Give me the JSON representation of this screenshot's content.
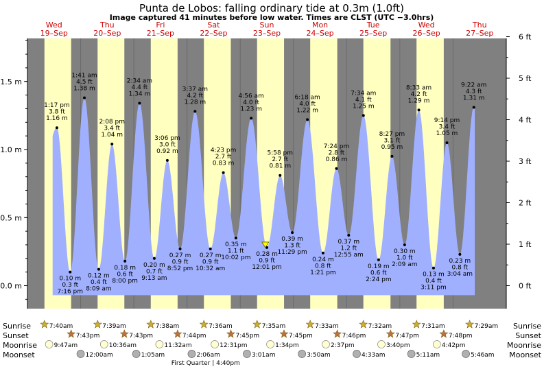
{
  "title": "Punta de Lobos: falling  ordinary tide at 0.3m (1.0ft)",
  "subtitle": "Image captured 41 minutes before low water. Times are CLST (UTC −3.0hrs)",
  "days": [
    {
      "dow": "Wed",
      "date": "19–Sep"
    },
    {
      "dow": "Thu",
      "date": "20–Sep"
    },
    {
      "dow": "Fri",
      "date": "21–Sep"
    },
    {
      "dow": "Sat",
      "date": "22–Sep"
    },
    {
      "dow": "Sun",
      "date": "23–Sep"
    },
    {
      "dow": "Mon",
      "date": "24–Sep"
    },
    {
      "dow": "Tue",
      "date": "25–Sep"
    },
    {
      "dow": "Wed",
      "date": "26–Sep"
    },
    {
      "dow": "Thu",
      "date": "27–Sep"
    }
  ],
  "row_labels": {
    "sunrise": "Sunrise",
    "sunset": "Sunset",
    "moonrise": "Moonrise",
    "moonset": "Moonset"
  },
  "moon_phase_note": "First Quarter | 4:40pm",
  "colors": {
    "night": "#808080",
    "day": "#ffffc0",
    "water": "#a0b0ff",
    "title": "#000000",
    "date": "#cc0000",
    "sun": "#c8b030",
    "sunset": "#c07040",
    "moonrise": "#ffffd0",
    "moonset": "#b0b0b0"
  },
  "chart_data": {
    "type": "area",
    "y_left_label_unit": "m",
    "y_right_label_unit": "ft",
    "left_ticks": [
      {
        "v": 0.0,
        "label": "0.0 m"
      },
      {
        "v": 0.5,
        "label": "0.5 m"
      },
      {
        "v": 1.0,
        "label": "1.0 m"
      },
      {
        "v": 1.5,
        "label": "1.5 m"
      }
    ],
    "right_ticks": [
      {
        "v": 0,
        "label": "0 ft"
      },
      {
        "v": 1,
        "label": "1 ft"
      },
      {
        "v": 2,
        "label": "2 ft"
      },
      {
        "v": 3,
        "label": "3 ft"
      },
      {
        "v": 4,
        "label": "4 ft"
      },
      {
        "v": 5,
        "label": "5 ft"
      },
      {
        "v": 6,
        "label": "6 ft"
      }
    ],
    "ylim_m": [
      -0.1,
      1.86
    ],
    "xlim_day": [
      19.0,
      28.0
    ],
    "tides": [
      {
        "d": 19,
        "time": "1:17 pm",
        "m": 1.16,
        "ft": "3.8 ft",
        "ml": "1.16 m",
        "hi": true
      },
      {
        "d": 19,
        "time": "7:16 pm",
        "m": 0.1,
        "ft": "0.3 ft",
        "ml": "0.10 m",
        "hi": false
      },
      {
        "d": 20,
        "time": "1:41 am",
        "m": 1.38,
        "ft": "4.5 ft",
        "ml": "1.38 m",
        "hi": true
      },
      {
        "d": 20,
        "time": "8:09 am",
        "m": 0.12,
        "ft": "0.4 ft",
        "ml": "0.12 m",
        "hi": false
      },
      {
        "d": 20,
        "time": "2:08 pm",
        "m": 1.04,
        "ft": "3.4 ft",
        "ml": "1.04 m",
        "hi": true
      },
      {
        "d": 20,
        "time": "8:00 pm",
        "m": 0.18,
        "ft": "0.6 ft",
        "ml": "0.18 m",
        "hi": false
      },
      {
        "d": 21,
        "time": "2:34 am",
        "m": 1.34,
        "ft": "4.4 ft",
        "ml": "1.34 m",
        "hi": true
      },
      {
        "d": 21,
        "time": "9:13 am",
        "m": 0.2,
        "ft": "0.7 ft",
        "ml": "0.20 m",
        "hi": false
      },
      {
        "d": 21,
        "time": "3:06 pm",
        "m": 0.92,
        "ft": "3.0 ft",
        "ml": "0.92 m",
        "hi": true
      },
      {
        "d": 21,
        "time": "8:52 pm",
        "m": 0.27,
        "ft": "0.9 ft",
        "ml": "0.27 m",
        "hi": false
      },
      {
        "d": 22,
        "time": "3:37 am",
        "m": 1.28,
        "ft": "4.2 ft",
        "ml": "1.28 m",
        "hi": true
      },
      {
        "d": 22,
        "time": "10:32 am",
        "m": 0.27,
        "ft": "0.9 ft",
        "ml": "0.27 m",
        "hi": false
      },
      {
        "d": 22,
        "time": "4:23 pm",
        "m": 0.83,
        "ft": "2.7 ft",
        "ml": "0.83 m",
        "hi": true
      },
      {
        "d": 22,
        "time": "10:02 pm",
        "m": 0.35,
        "ft": "1.1 ft",
        "ml": "0.35 m",
        "hi": false
      },
      {
        "d": 23,
        "time": "4:56 am",
        "m": 1.23,
        "ft": "4.0 ft",
        "ml": "1.23 m",
        "hi": true
      },
      {
        "d": 23,
        "time": "12:01 pm",
        "m": 0.28,
        "ft": "0.9 ft",
        "ml": "0.28 m",
        "hi": false
      },
      {
        "d": 23,
        "time": "5:58 pm",
        "m": 0.81,
        "ft": "2.7 ft",
        "ml": "0.81 m",
        "hi": true
      },
      {
        "d": 23,
        "time": "11:29 pm",
        "m": 0.39,
        "ft": "1.3 ft",
        "ml": "0.39 m",
        "hi": false
      },
      {
        "d": 24,
        "time": "6:18 am",
        "m": 1.22,
        "ft": "4.0 ft",
        "ml": "1.22 m",
        "hi": true
      },
      {
        "d": 24,
        "time": "1:21 pm",
        "m": 0.24,
        "ft": "0.8 ft",
        "ml": "0.24 m",
        "hi": false
      },
      {
        "d": 24,
        "time": "7:24 pm",
        "m": 0.86,
        "ft": "2.8 ft",
        "ml": "0.86 m",
        "hi": true
      },
      {
        "d": 25,
        "time": "12:55 am",
        "m": 0.37,
        "ft": "1.2 ft",
        "ml": "0.37 m",
        "hi": false
      },
      {
        "d": 25,
        "time": "7:34 am",
        "m": 1.25,
        "ft": "4.1 ft",
        "ml": "1.25 m",
        "hi": true
      },
      {
        "d": 25,
        "time": "2:24 pm",
        "m": 0.19,
        "ft": "0.6 ft",
        "ml": "0.19 m",
        "hi": false
      },
      {
        "d": 25,
        "time": "8:27 pm",
        "m": 0.95,
        "ft": "3.1 ft",
        "ml": "0.95 m",
        "hi": true
      },
      {
        "d": 26,
        "time": "2:09 am",
        "m": 0.3,
        "ft": "1.0 ft",
        "ml": "0.30 m",
        "hi": false
      },
      {
        "d": 26,
        "time": "8:33 am",
        "m": 1.29,
        "ft": "4.2 ft",
        "ml": "1.29 m",
        "hi": true
      },
      {
        "d": 26,
        "time": "3:11 pm",
        "m": 0.13,
        "ft": "0.4 ft",
        "ml": "0.13 m",
        "hi": false
      },
      {
        "d": 26,
        "time": "9:14 pm",
        "m": 1.05,
        "ft": "3.4 ft",
        "ml": "1.05 m",
        "hi": true
      },
      {
        "d": 27,
        "time": "3:04 am",
        "m": 0.23,
        "ft": "0.8 ft",
        "ml": "0.23 m",
        "hi": false
      },
      {
        "d": 27,
        "time": "9:22 am",
        "m": 1.31,
        "ft": "4.3 ft",
        "ml": "1.31 m",
        "hi": true
      }
    ],
    "current": {
      "d": 23,
      "time": "11:20 am",
      "m": 0.3
    },
    "sunrise": [
      "7:40am",
      "7:39am",
      "7:38am",
      "7:36am",
      "7:35am",
      "7:33am",
      "7:32am",
      "7:31am",
      "7:29am"
    ],
    "sunset": [
      "7:43pm",
      "7:43pm",
      "7:44pm",
      "7:45pm",
      "7:45pm",
      "7:46pm",
      "7:47pm",
      "7:48pm"
    ],
    "moonrise": [
      {
        "d": 19,
        "time": "9:47am"
      },
      {
        "d": 20,
        "time": "10:36am"
      },
      {
        "d": 21,
        "time": "11:32am"
      },
      {
        "d": 22,
        "time": "12:31pm"
      },
      {
        "d": 23,
        "time": "1:34pm"
      },
      {
        "d": 24,
        "time": "2:37pm"
      },
      {
        "d": 25,
        "time": "3:40pm"
      },
      {
        "d": 26,
        "time": "4:42pm"
      }
    ],
    "moonset": [
      {
        "d": 20,
        "time": "12:00am"
      },
      {
        "d": 21,
        "time": "1:05am"
      },
      {
        "d": 22,
        "time": "2:06am"
      },
      {
        "d": 23,
        "time": "3:01am"
      },
      {
        "d": 24,
        "time": "3:50am"
      },
      {
        "d": 25,
        "time": "4:33am"
      },
      {
        "d": 26,
        "time": "5:11am"
      },
      {
        "d": 27,
        "time": "5:46am"
      }
    ]
  }
}
